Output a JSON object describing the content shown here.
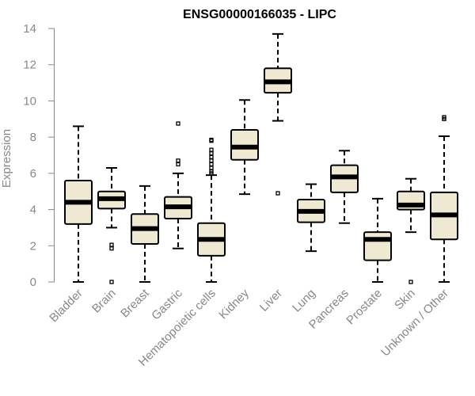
{
  "chart_data": {
    "type": "boxplot",
    "title": "ENSG00000166035 - LIPC",
    "ylabel": "Expression",
    "xlabel": "",
    "ylim": [
      0,
      14
    ],
    "yticks": [
      0,
      2,
      4,
      6,
      8,
      10,
      12,
      14
    ],
    "box_color": "#efe8d2",
    "categories": [
      "Bladder",
      "Brain",
      "Breast",
      "Gastric",
      "Hematopoietic cells",
      "Kidney",
      "Liver",
      "Lung",
      "Pancreas",
      "Prostate",
      "Skin",
      "Unknown / Other"
    ],
    "boxes": [
      {
        "whislo": 0.0,
        "q1": 3.2,
        "med": 4.4,
        "q3": 5.6,
        "whishi": 8.6,
        "fliers": []
      },
      {
        "whislo": 3.0,
        "q1": 4.05,
        "med": 4.6,
        "q3": 5.0,
        "whishi": 6.3,
        "fliers": [
          2.05,
          1.85,
          0.0
        ]
      },
      {
        "whislo": 0.0,
        "q1": 2.1,
        "med": 2.95,
        "q3": 3.75,
        "whishi": 5.3,
        "fliers": []
      },
      {
        "whislo": 1.85,
        "q1": 3.5,
        "med": 4.15,
        "q3": 4.7,
        "whishi": 6.0,
        "fliers": [
          6.5,
          6.7,
          8.75
        ]
      },
      {
        "whislo": 0.0,
        "q1": 1.45,
        "med": 2.35,
        "q3": 3.25,
        "whishi": 5.9,
        "fliers": [
          6.0,
          6.1,
          6.3,
          6.5,
          6.7,
          6.9,
          7.1,
          7.3,
          7.8,
          7.85
        ]
      },
      {
        "whislo": 4.85,
        "q1": 6.75,
        "med": 7.45,
        "q3": 8.4,
        "whishi": 10.05,
        "fliers": []
      },
      {
        "whislo": 8.9,
        "q1": 10.45,
        "med": 11.05,
        "q3": 11.8,
        "whishi": 13.7,
        "fliers": [
          4.9
        ]
      },
      {
        "whislo": 1.7,
        "q1": 3.3,
        "med": 3.9,
        "q3": 4.55,
        "whishi": 5.4,
        "fliers": []
      },
      {
        "whislo": 3.25,
        "q1": 4.95,
        "med": 5.8,
        "q3": 6.45,
        "whishi": 7.25,
        "fliers": []
      },
      {
        "whislo": 0.0,
        "q1": 1.2,
        "med": 2.35,
        "q3": 2.75,
        "whishi": 4.6,
        "fliers": []
      },
      {
        "whislo": 2.75,
        "q1": 4.0,
        "med": 4.25,
        "q3": 5.0,
        "whishi": 5.7,
        "fliers": [
          0.0
        ]
      },
      {
        "whislo": 0.0,
        "q1": 2.35,
        "med": 3.7,
        "q3": 4.95,
        "whishi": 8.05,
        "fliers": [
          9.0,
          9.1
        ]
      }
    ]
  }
}
